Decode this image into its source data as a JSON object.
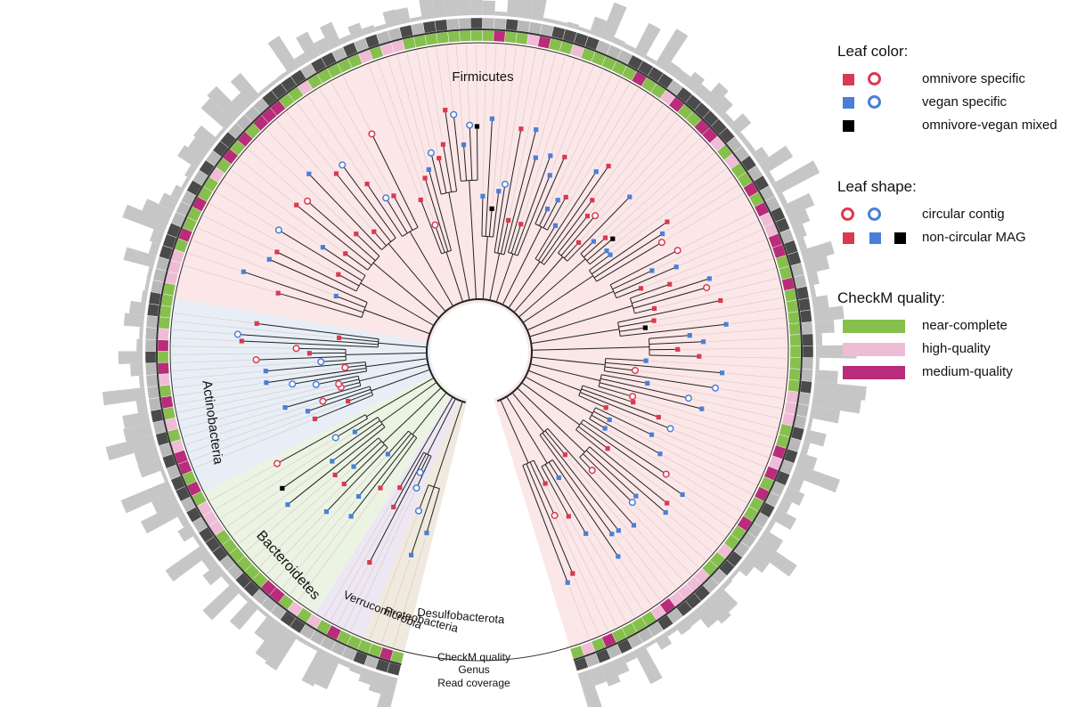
{
  "colors": {
    "omnivore": "#d93a4f",
    "vegan": "#4a7fd8",
    "mixed": "#000000",
    "near_complete": "#86bf4e",
    "high_quality": "#efbcd6",
    "medium_quality": "#b82c79",
    "firmicutes_bg": "#fbe6e6",
    "actinobacteria_bg": "#e6edf5",
    "bacteroidetes_bg": "#eaf2e2",
    "verrucomicrobia_bg": "#ece6f2",
    "proteobacteria_bg": "#efe8dc",
    "genus_dark": "#4a4a4a",
    "genus_light": "#b8b8b8",
    "coverage": "#c6c6c6"
  },
  "clades": {
    "firmicutes": "Firmicutes",
    "actinobacteria": "Actinobacteria",
    "bacteroidetes": "Bacteroidetes",
    "verrucomicrobia": "Verrucomicrobia",
    "proteobacteria": "Proteobacteria",
    "desulfobacterota": "Desulfobacterota"
  },
  "ring_labels": {
    "checkm": "CheckM quality",
    "genus": "Genus",
    "coverage": "Read coverage"
  },
  "legend": {
    "leaf_color": {
      "title": "Leaf color:",
      "omnivore": "omnivore specific",
      "vegan": "vegan specific",
      "mixed": "omnivore-vegan mixed"
    },
    "leaf_shape": {
      "title": "Leaf shape:",
      "circular": "circular contig",
      "noncircular": "non-circular MAG"
    },
    "checkm": {
      "title": "CheckM quality:",
      "near_complete": "near-complete",
      "high_quality": "high-quality",
      "medium_quality": "medium-quality"
    }
  }
}
